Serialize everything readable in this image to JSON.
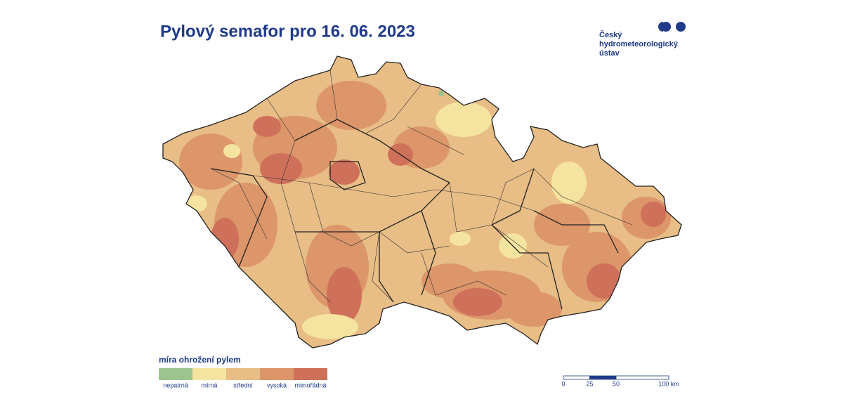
{
  "header": {
    "title": "Pylový semafor pro 16. 06. 2023"
  },
  "logo": {
    "lines": [
      "Český",
      "hydrometeorologický",
      "ústav"
    ]
  },
  "legend": {
    "title": "míra ohrožení pylem",
    "items": [
      {
        "label": "nepatrná",
        "color": "#9dc38f"
      },
      {
        "label": "mírná",
        "color": "#f5e4a0"
      },
      {
        "label": "střední",
        "color": "#e8bd86"
      },
      {
        "label": "vysoká",
        "color": "#dc9669"
      },
      {
        "label": "mimořádná",
        "color": "#cf705b"
      }
    ]
  },
  "scale": {
    "ticks": [
      0,
      25,
      50,
      {
        "value": 100,
        "label": "100 km"
      }
    ]
  }
}
